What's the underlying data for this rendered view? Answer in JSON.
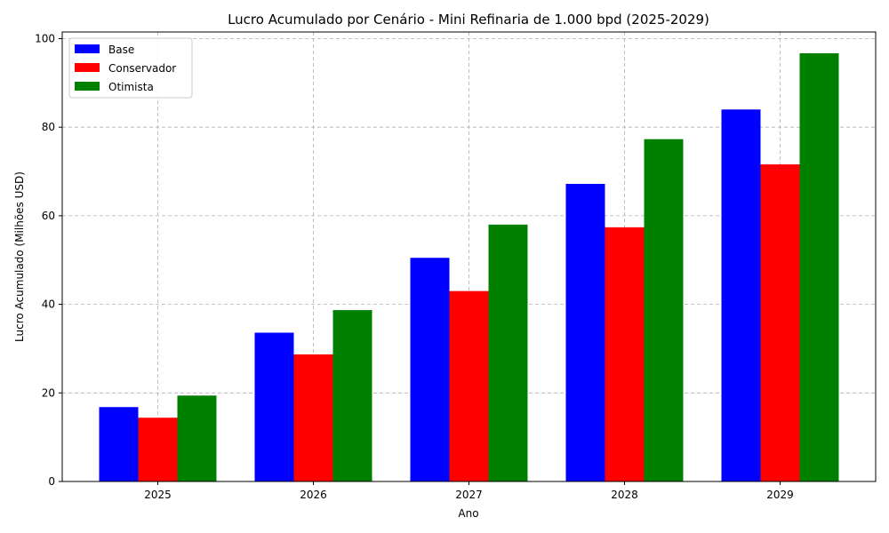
{
  "chart_data": {
    "type": "bar",
    "title": "Lucro Acumulado por Cenário - Mini Refinaria de 1.000 bpd (2025-2029)",
    "xlabel": "Ano",
    "ylabel": "Lucro Acumulado (Milhões USD)",
    "categories": [
      "2025",
      "2026",
      "2027",
      "2028",
      "2029"
    ],
    "series": [
      {
        "name": "Base",
        "color": "#0000ff",
        "values": [
          16.8,
          33.6,
          50.5,
          67.2,
          84.0
        ]
      },
      {
        "name": "Conservador",
        "color": "#ff0000",
        "values": [
          14.4,
          28.7,
          43.0,
          57.4,
          71.6
        ]
      },
      {
        "name": "Otimista",
        "color": "#008000",
        "values": [
          19.4,
          38.7,
          58.0,
          77.3,
          96.7
        ]
      }
    ],
    "ylim": [
      0,
      101.5
    ],
    "yticks": [
      0,
      20,
      40,
      60,
      80,
      100
    ],
    "grid": true,
    "legend_position": "top-left"
  }
}
